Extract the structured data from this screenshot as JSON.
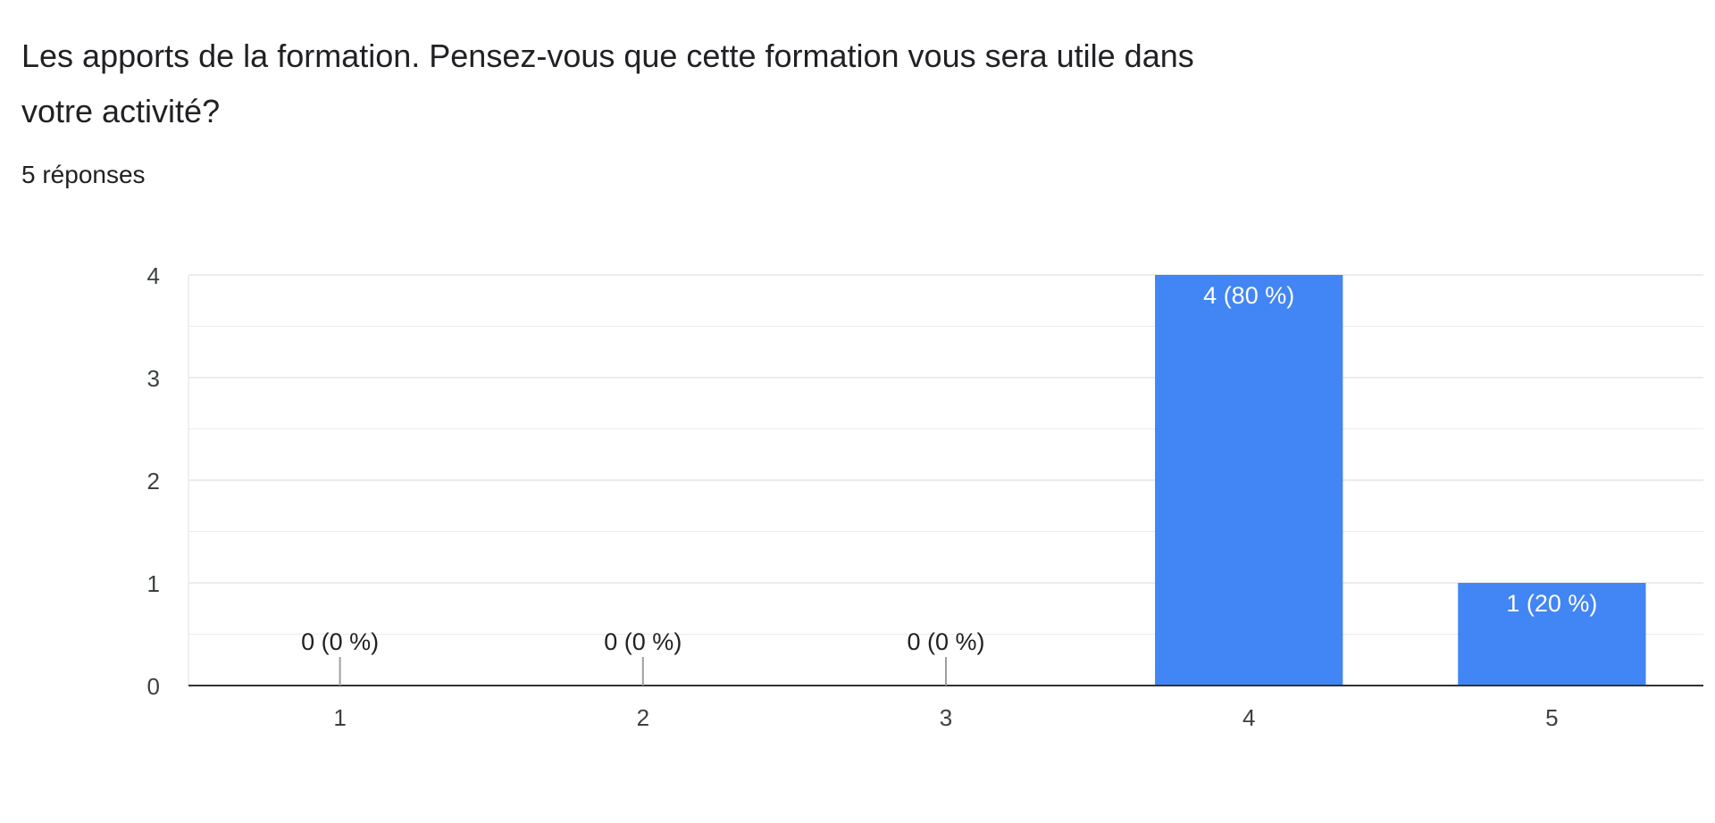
{
  "question": {
    "title": "Les apports de la formation. Pensez-vous que cette formation vous sera utile dans\nvotre activité?",
    "response_count": "5 réponses"
  },
  "colors": {
    "bar": "#4285f4",
    "text": "#202124",
    "axis_text": "#3c4043",
    "grid": "#ececec",
    "baseline": "#333333",
    "bar_label_inside": "#ffffff"
  },
  "chart_data": {
    "type": "bar",
    "categories": [
      "1",
      "2",
      "3",
      "4",
      "5"
    ],
    "values": [
      0,
      0,
      0,
      4,
      1
    ],
    "data_labels": [
      "0 (0 %)",
      "0 (0 %)",
      "0 (0 %)",
      "4 (80 %)",
      "1 (20 %)"
    ],
    "y_ticks": [
      "0",
      "1",
      "2",
      "3",
      "4"
    ],
    "ylim": [
      0,
      4
    ],
    "grid": true,
    "minor_grid": true,
    "legend": "none"
  }
}
